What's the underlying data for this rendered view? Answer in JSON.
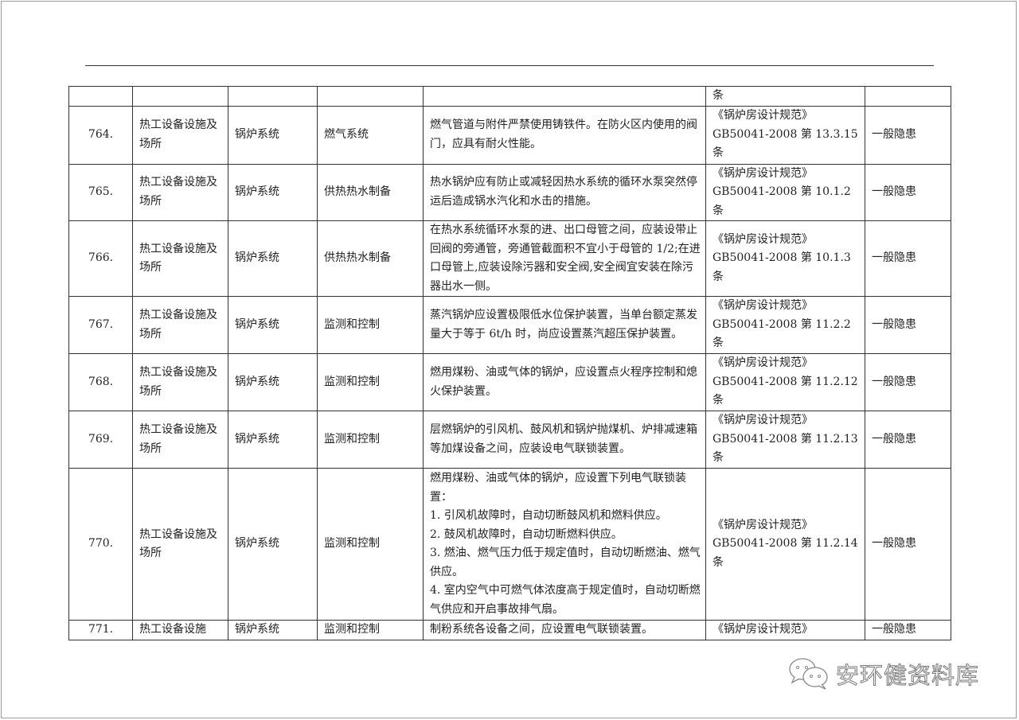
{
  "table": {
    "continued_cell": "条",
    "rows": [
      {
        "no": "764.",
        "category": "热工设备设施及场所",
        "system": "锅炉系统",
        "subsystem": "燃气系统",
        "requirement": "燃气管道与附件严禁使用铸铁件。在防火区内使用的阀门，应具有耐火性能。",
        "basis": "《锅炉房设计规范》GB50041-2008 第 13.3.15 条",
        "level": "一般隐患"
      },
      {
        "no": "765.",
        "category": "热工设备设施及场所",
        "system": "锅炉系统",
        "subsystem": "供热热水制备",
        "requirement": "热水锅炉应有防止或减轻因热水系统的循环水泵突然停运后造成锅水汽化和水击的措施。",
        "basis": "《锅炉房设计规范》GB50041-2008 第 10.1.2 条",
        "level": "一般隐患"
      },
      {
        "no": "766.",
        "category": "热工设备设施及场所",
        "system": "锅炉系统",
        "subsystem": "供热热水制备",
        "requirement": "在热水系统循环水泵的进、出口母管之间，应装设带止回阀的旁通管，旁通管截面积不宜小于母管的 1/2;在进口母管上,应装设除污器和安全阀,安全阀宜安装在除污器出水一侧。",
        "basis": "《锅炉房设计规范》GB50041-2008 第 10.1.3 条",
        "level": "一般隐患"
      },
      {
        "no": "767.",
        "category": "热工设备设施及场所",
        "system": "锅炉系统",
        "subsystem": "监测和控制",
        "requirement": "蒸汽锅炉应设置极限低水位保护装置，当单台额定蒸发量大于等于 6t/h 时，尚应设置蒸汽超压保护装置。",
        "basis": "《锅炉房设计规范》GB50041-2008 第 11.2.2 条",
        "level": "一般隐患"
      },
      {
        "no": "768.",
        "category": "热工设备设施及场所",
        "system": "锅炉系统",
        "subsystem": "监测和控制",
        "requirement": "燃用煤粉、油或气体的锅炉，应设置点火程序控制和熄火保护装置。",
        "basis": "《锅炉房设计规范》GB50041-2008 第 11.2.12 条",
        "level": "一般隐患"
      },
      {
        "no": "769.",
        "category": "热工设备设施及场所",
        "system": "锅炉系统",
        "subsystem": "监测和控制",
        "requirement": "层燃锅炉的引风机、鼓风机和锅炉抛煤机、炉排减速箱等加煤设备之间，应装设电气联锁装置。",
        "basis": "《锅炉房设计规范》GB50041-2008 第 11.2.13 条",
        "level": "一般隐患"
      },
      {
        "no": "770.",
        "category": "热工设备设施及场所",
        "system": "锅炉系统",
        "subsystem": "监测和控制",
        "requirement": "燃用煤粉、油或气体的锅炉，应设置下列电气联锁装置：\n1.  引风机故障时，自动切断鼓风机和燃料供应。\n2.  鼓风机故障时，自动切断燃料供应。\n3.  燃油、燃气压力低于规定值时，自动切断燃油、燃气供应。\n4.  室内空气中可燃气体浓度高于规定值时，自动切断燃气供应和开启事故排气扇。",
        "basis": "《锅炉房设计规范》GB50041-2008 第 11.2.14 条",
        "level": "一般隐患"
      },
      {
        "no": "771.",
        "category": "热工设备设施",
        "system": "锅炉系统",
        "subsystem": "监测和控制",
        "requirement": "制粉系统各设备之间，应设置电气联锁装置。",
        "basis": "《锅炉房设计规范》",
        "level": "一般隐患"
      }
    ]
  },
  "watermark": {
    "text": "安环健资料库",
    "icon": "wechat-icon"
  }
}
